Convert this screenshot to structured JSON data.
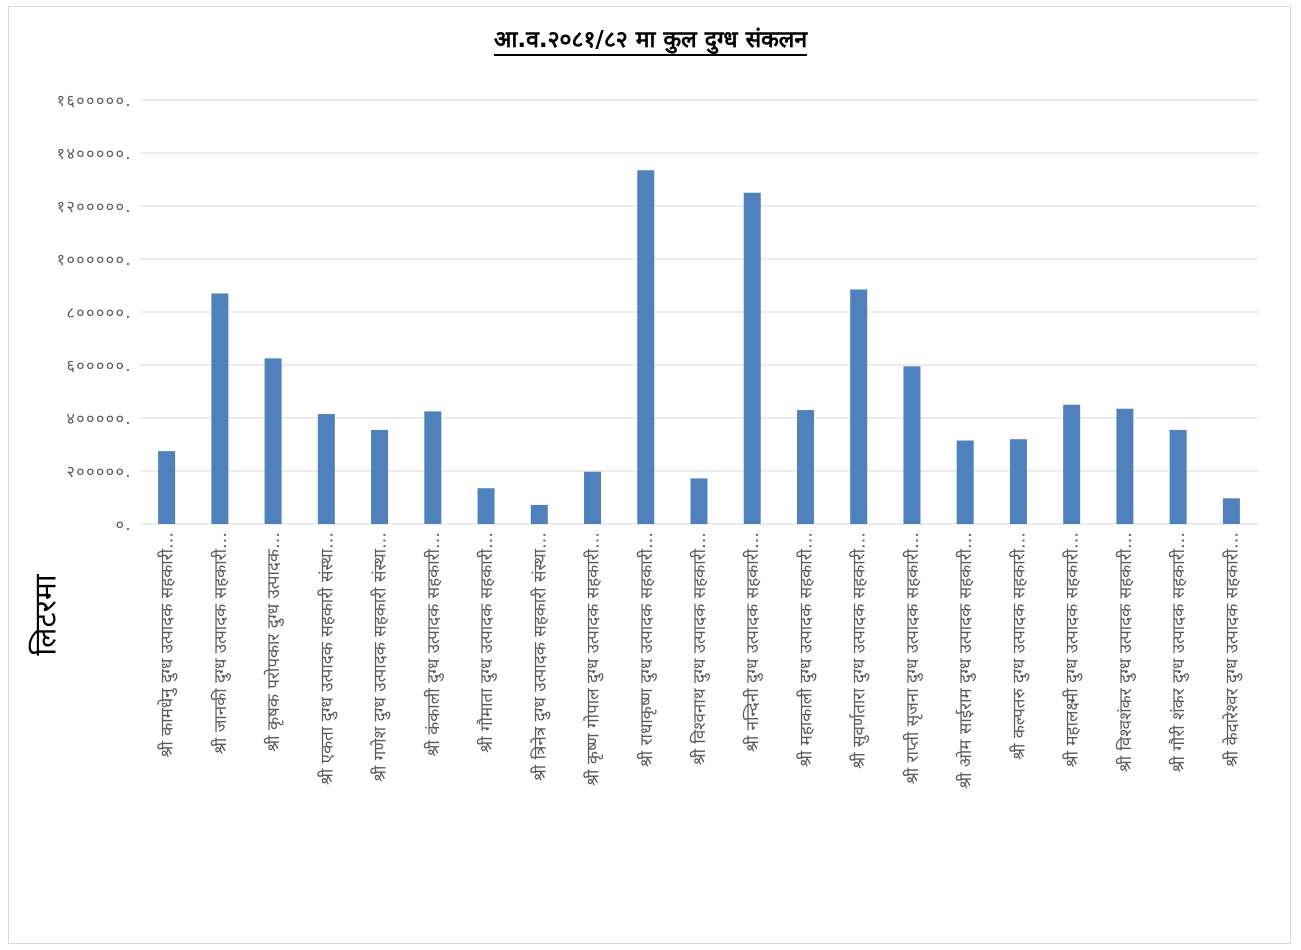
{
  "chart_data": {
    "type": "bar",
    "title": "आ.व.२०८१/८२ मा कुल दुग्ध संकलन",
    "ylabel": "लिटरमा",
    "xlabel": "",
    "ylim": [
      0,
      1600000
    ],
    "y_ticks": [
      0,
      200000,
      400000,
      600000,
      800000,
      1000000,
      1200000,
      1400000,
      1600000
    ],
    "y_tick_labels": [
      "०.",
      "२०००००.",
      "४०००००.",
      "६०००००.",
      "८०००००.",
      "१००००००.",
      "१२०००००.",
      "१४०००००.",
      "१६०००००."
    ],
    "grid": true,
    "bar_color": "#4f81bd",
    "categories": [
      "श्री कामधेनु दुग्ध उत्पादक सहकारी…",
      "श्री जानकी दुग्ध उत्पादक सहकारी…",
      "श्री कृषक परोपकार दुग्ध उत्पादक…",
      "श्री एकता दुग्ध उत्पादक सहकारी संस्था…",
      "श्री गणेश दुग्ध उत्पादक सहकारी संस्था…",
      "श्री कंकाली दुग्ध उत्पादक सहकारी…",
      "श्री गौमाता दुग्ध उत्पादक सहकारी…",
      "श्री त्रिनेत्र दुग्ध उत्पादक सहकारी संस्था…",
      "श्री कृष्ण गोपाल दुग्ध उत्पादक सहकारी…",
      "श्री राधाकृष्ण दुग्ध उत्पादक सहकारी…",
      "श्री विश्वनाथ दुग्ध उत्पादक सहकारी…",
      "श्री नन्दिनी दुग्ध उत्पादक सहकारी…",
      "श्री महाकाली दुग्ध उत्पादक सहकारी…",
      "श्री सुवर्णतारा दुग्ध उत्पादक सहकारी…",
      "श्री राप्ती सृजना दुग्ध उत्पादक सहकारी…",
      "श्री ओम साईराम दुग्ध उत्पादक सहकारी…",
      "श्री कल्पतरु दुग्ध उत्पादक सहकारी…",
      "श्री महालक्ष्मी दुग्ध उत्पादक सहकारी…",
      "श्री विश्वशंकर दुग्ध उत्पादक सहकारी…",
      "श्री गौरी शंकर दुग्ध उत्पादक सहकारी…",
      "श्री केदारेश्वर दुग्ध उत्पादक सहकारी…"
    ],
    "values": [
      275000,
      870000,
      625000,
      415000,
      355000,
      425000,
      135000,
      72000,
      197000,
      1335000,
      172000,
      1250000,
      430000,
      885000,
      595000,
      315000,
      320000,
      450000,
      435000,
      355000,
      97000
    ]
  }
}
